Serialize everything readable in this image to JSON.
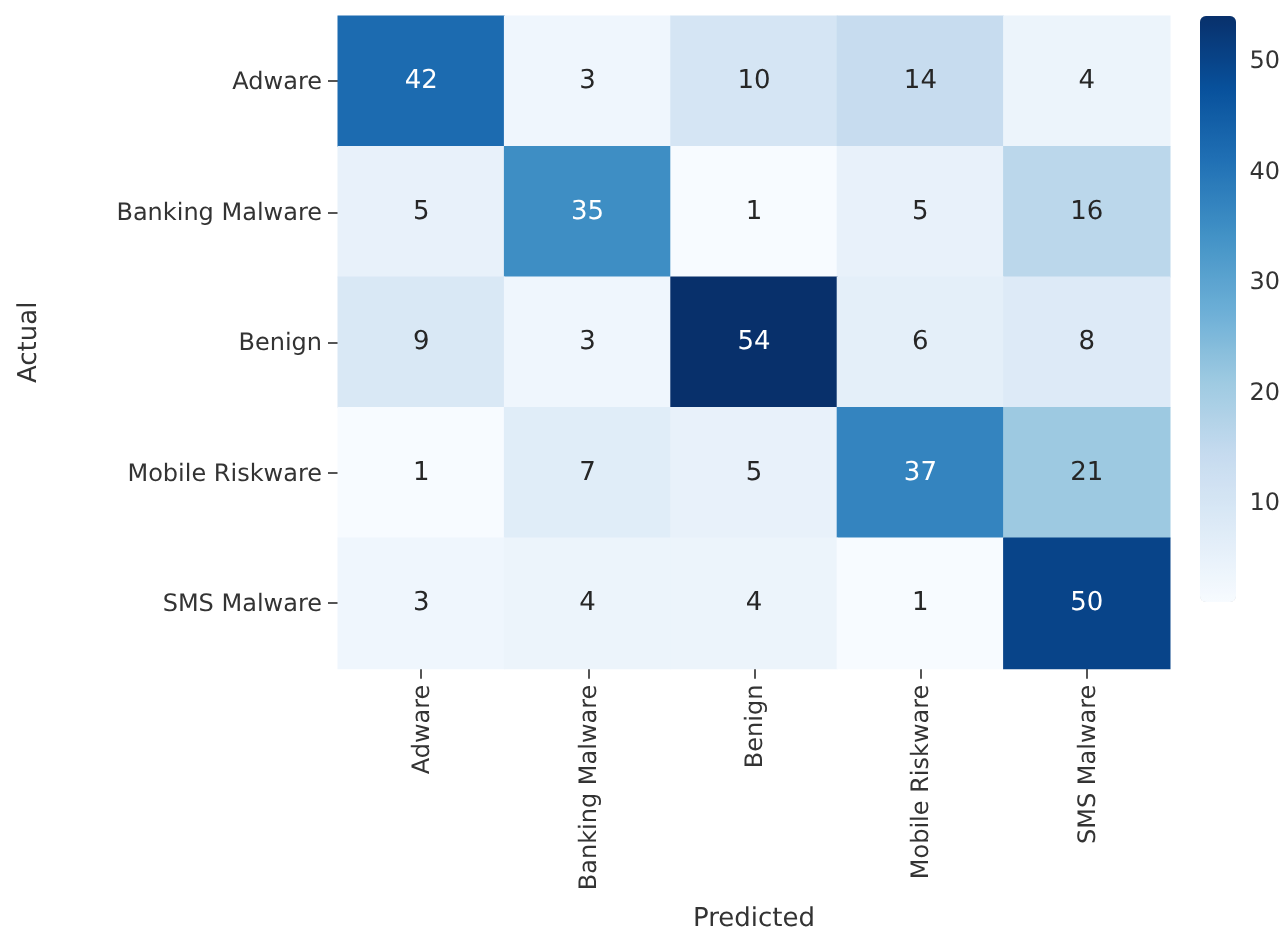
{
  "chart_data": {
    "type": "heatmap",
    "xlabel": "Predicted",
    "ylabel": "Actual",
    "categories": [
      "Adware",
      "Banking Malware",
      "Benign",
      "Mobile Riskware",
      "SMS Malware"
    ],
    "y_categories": [
      "Adware",
      "Banking Malware",
      "Benign",
      "Mobile Riskware",
      "SMS Malware"
    ],
    "cells": [
      [
        42,
        3,
        10,
        14,
        4
      ],
      [
        5,
        35,
        1,
        5,
        16
      ],
      [
        9,
        3,
        54,
        6,
        8
      ],
      [
        1,
        7,
        5,
        37,
        21
      ],
      [
        3,
        4,
        4,
        1,
        50
      ]
    ],
    "data_labels": true,
    "clim": [
      1,
      54
    ],
    "cticks": [
      10,
      20,
      30,
      40,
      50
    ]
  }
}
